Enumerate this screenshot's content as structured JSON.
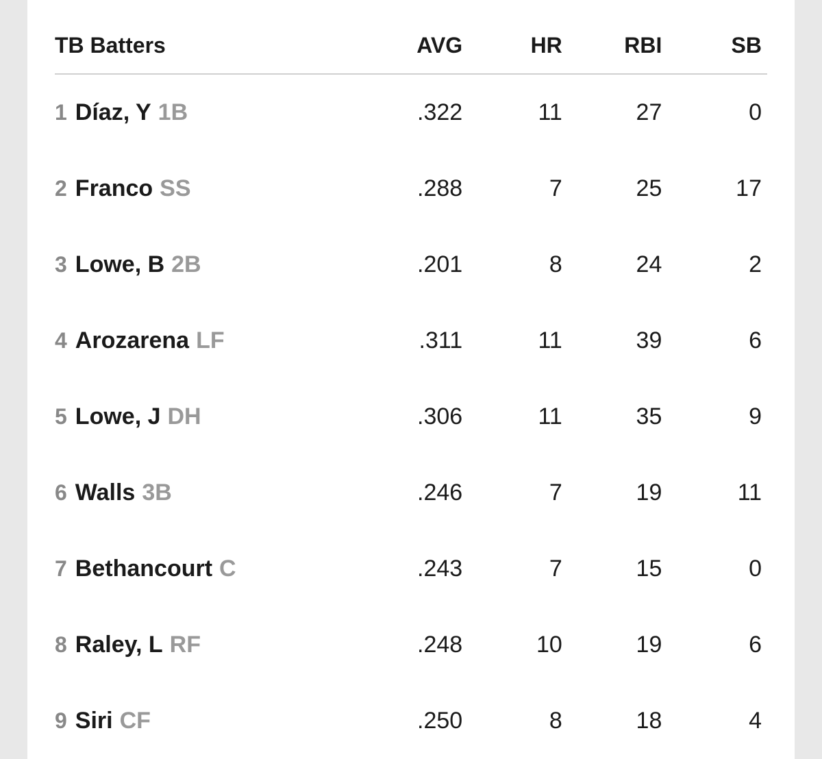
{
  "table": {
    "header": {
      "title": "TB Batters",
      "columns": [
        "AVG",
        "HR",
        "RBI",
        "SB"
      ]
    },
    "rows": [
      {
        "order": "1",
        "name": "Díaz, Y",
        "pos": "1B",
        "avg": ".322",
        "hr": "11",
        "rbi": "27",
        "sb": "0"
      },
      {
        "order": "2",
        "name": "Franco",
        "pos": "SS",
        "avg": ".288",
        "hr": "7",
        "rbi": "25",
        "sb": "17"
      },
      {
        "order": "3",
        "name": "Lowe, B",
        "pos": "2B",
        "avg": ".201",
        "hr": "8",
        "rbi": "24",
        "sb": "2"
      },
      {
        "order": "4",
        "name": "Arozarena",
        "pos": "LF",
        "avg": ".311",
        "hr": "11",
        "rbi": "39",
        "sb": "6"
      },
      {
        "order": "5",
        "name": "Lowe, J",
        "pos": "DH",
        "avg": ".306",
        "hr": "11",
        "rbi": "35",
        "sb": "9"
      },
      {
        "order": "6",
        "name": "Walls",
        "pos": "3B",
        "avg": ".246",
        "hr": "7",
        "rbi": "19",
        "sb": "11"
      },
      {
        "order": "7",
        "name": "Bethancourt",
        "pos": "C",
        "avg": ".243",
        "hr": "7",
        "rbi": "15",
        "sb": "0"
      },
      {
        "order": "8",
        "name": "Raley, L",
        "pos": "RF",
        "avg": ".248",
        "hr": "10",
        "rbi": "19",
        "sb": "6"
      },
      {
        "order": "9",
        "name": "Siri",
        "pos": "CF",
        "avg": ".250",
        "hr": "8",
        "rbi": "18",
        "sb": "4"
      }
    ]
  },
  "styling": {
    "background_outer": "#e8e8e8",
    "background_inner": "#ffffff",
    "header_font_size": 32,
    "header_font_weight": 700,
    "header_text_color": "#1a1a1a",
    "header_border_color": "#d0d0d0",
    "body_font_size": 34,
    "order_color": "#888888",
    "name_color": "#1a1a1a",
    "pos_color": "#999999",
    "row_padding_vertical": 36,
    "column_widths": {
      "player": "44%",
      "stat": "14%"
    }
  }
}
